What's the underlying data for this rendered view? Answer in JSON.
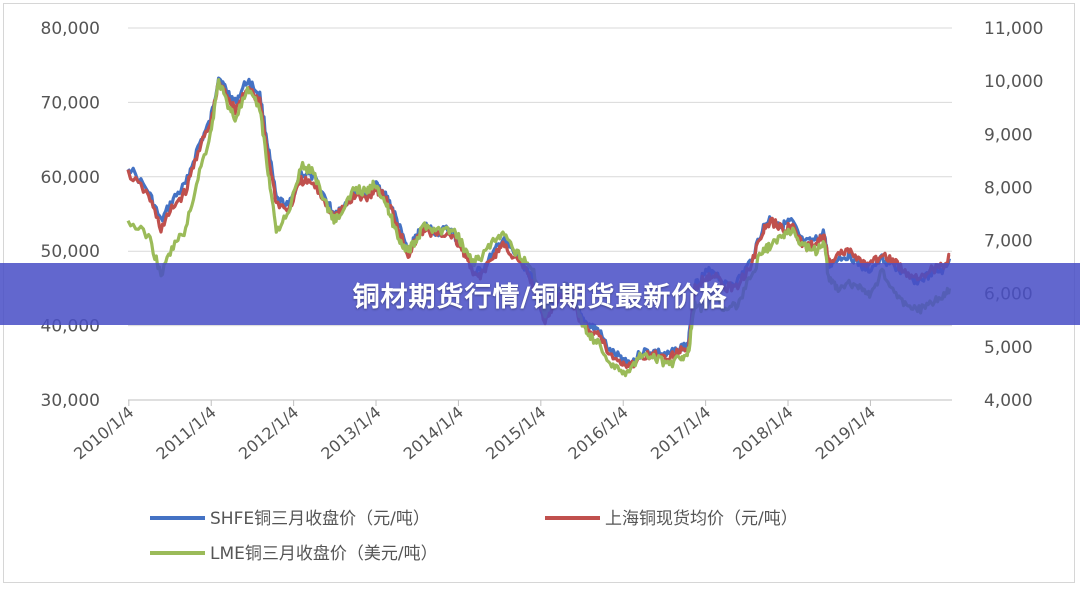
{
  "banner": {
    "title": "铜材期货行情/铜期货最新价格"
  },
  "chart_data": {
    "type": "line",
    "title": "",
    "left_axis": {
      "ylim": [
        30000,
        80000
      ],
      "ticks": [
        "30,000",
        "40,000",
        "50,000",
        "60,000",
        "70,000",
        "80,000"
      ]
    },
    "right_axis": {
      "ylim": [
        4000,
        11000
      ],
      "ticks": [
        "4,000",
        "5,000",
        "6,000",
        "7,000",
        "8,000",
        "9,000",
        "10,000",
        "11,000"
      ]
    },
    "x_ticks": [
      "2010/1/4",
      "2011/1/4",
      "2012/1/4",
      "2013/1/4",
      "2014/1/4",
      "2015/1/4",
      "2016/1/4",
      "2017/1/4",
      "2018/1/4",
      "2019/1/4"
    ],
    "grid": true,
    "legend_position": "bottom",
    "series": [
      {
        "name": "SHFE铜三月收盘价（元/吨）",
        "color": "#4472c4",
        "axis": "left",
        "points": [
          [
            2010.0,
            61500
          ],
          [
            2010.25,
            58000
          ],
          [
            2010.4,
            54000
          ],
          [
            2010.55,
            57000
          ],
          [
            2010.7,
            59000
          ],
          [
            2010.85,
            64000
          ],
          [
            2011.0,
            67500
          ],
          [
            2011.1,
            73500
          ],
          [
            2011.2,
            71500
          ],
          [
            2011.3,
            70000
          ],
          [
            2011.45,
            73000
          ],
          [
            2011.6,
            71000
          ],
          [
            2011.7,
            64000
          ],
          [
            2011.8,
            57000
          ],
          [
            2011.95,
            56000
          ],
          [
            2012.1,
            60500
          ],
          [
            2012.25,
            60000
          ],
          [
            2012.4,
            57000
          ],
          [
            2012.5,
            55000
          ],
          [
            2012.6,
            56000
          ],
          [
            2012.75,
            58000
          ],
          [
            2012.9,
            57500
          ],
          [
            2013.0,
            59000
          ],
          [
            2013.1,
            58000
          ],
          [
            2013.2,
            56000
          ],
          [
            2013.3,
            53000
          ],
          [
            2013.4,
            50000
          ],
          [
            2013.5,
            52000
          ],
          [
            2013.6,
            53500
          ],
          [
            2013.75,
            52500
          ],
          [
            2013.9,
            53000
          ],
          [
            2014.0,
            51500
          ],
          [
            2014.1,
            50000
          ],
          [
            2014.2,
            47000
          ],
          [
            2014.3,
            47500
          ],
          [
            2014.45,
            50000
          ],
          [
            2014.55,
            51500
          ],
          [
            2014.7,
            49500
          ],
          [
            2014.85,
            47500
          ],
          [
            2014.95,
            45000
          ],
          [
            2015.05,
            41000
          ],
          [
            2015.15,
            43000
          ],
          [
            2015.3,
            45000
          ],
          [
            2015.4,
            43500
          ],
          [
            2015.5,
            41000
          ],
          [
            2015.6,
            40000
          ],
          [
            2015.7,
            39500
          ],
          [
            2015.85,
            36500
          ],
          [
            2016.0,
            35500
          ],
          [
            2016.1,
            35000
          ],
          [
            2016.25,
            36500
          ],
          [
            2016.4,
            36500
          ],
          [
            2016.55,
            36000
          ],
          [
            2016.7,
            37000
          ],
          [
            2016.8,
            37500
          ],
          [
            2016.88,
            45500
          ],
          [
            2017.0,
            47000
          ],
          [
            2017.1,
            47500
          ],
          [
            2017.25,
            45500
          ],
          [
            2017.4,
            46000
          ],
          [
            2017.55,
            48500
          ],
          [
            2017.7,
            53000
          ],
          [
            2017.8,
            54500
          ],
          [
            2017.95,
            53500
          ],
          [
            2018.05,
            54000
          ],
          [
            2018.2,
            51000
          ],
          [
            2018.35,
            51500
          ],
          [
            2018.45,
            52500
          ],
          [
            2018.5,
            48000
          ],
          [
            2018.6,
            49000
          ],
          [
            2018.75,
            49500
          ],
          [
            2018.9,
            48000
          ],
          [
            2019.0,
            47500
          ],
          [
            2019.15,
            49000
          ],
          [
            2019.3,
            48000
          ],
          [
            2019.45,
            46500
          ],
          [
            2019.6,
            46000
          ],
          [
            2019.75,
            47000
          ],
          [
            2019.9,
            47500
          ],
          [
            2019.97,
            49000
          ]
        ]
      },
      {
        "name": "上海铜现货均价（元/吨）",
        "color": "#c0504d",
        "axis": "left",
        "points": [
          [
            2010.0,
            60500
          ],
          [
            2010.25,
            57500
          ],
          [
            2010.4,
            53000
          ],
          [
            2010.55,
            56000
          ],
          [
            2010.7,
            58000
          ],
          [
            2010.85,
            63500
          ],
          [
            2011.0,
            67000
          ],
          [
            2011.1,
            72500
          ],
          [
            2011.2,
            71000
          ],
          [
            2011.3,
            69000
          ],
          [
            2011.45,
            72000
          ],
          [
            2011.6,
            70000
          ],
          [
            2011.7,
            63000
          ],
          [
            2011.8,
            56500
          ],
          [
            2011.95,
            55500
          ],
          [
            2012.1,
            59500
          ],
          [
            2012.25,
            59000
          ],
          [
            2012.4,
            56500
          ],
          [
            2012.5,
            54500
          ],
          [
            2012.6,
            55500
          ],
          [
            2012.75,
            57500
          ],
          [
            2012.9,
            57000
          ],
          [
            2013.0,
            58500
          ],
          [
            2013.1,
            57500
          ],
          [
            2013.2,
            55500
          ],
          [
            2013.3,
            52500
          ],
          [
            2013.4,
            49500
          ],
          [
            2013.5,
            51500
          ],
          [
            2013.6,
            53000
          ],
          [
            2013.75,
            52000
          ],
          [
            2013.9,
            52500
          ],
          [
            2014.0,
            51000
          ],
          [
            2014.1,
            49500
          ],
          [
            2014.2,
            46500
          ],
          [
            2014.3,
            47000
          ],
          [
            2014.45,
            49500
          ],
          [
            2014.55,
            51000
          ],
          [
            2014.7,
            49000
          ],
          [
            2014.85,
            47000
          ],
          [
            2014.95,
            44500
          ],
          [
            2015.05,
            40500
          ],
          [
            2015.15,
            42500
          ],
          [
            2015.3,
            44500
          ],
          [
            2015.4,
            43000
          ],
          [
            2015.5,
            40500
          ],
          [
            2015.6,
            39500
          ],
          [
            2015.7,
            39000
          ],
          [
            2015.85,
            36000
          ],
          [
            2016.0,
            35000
          ],
          [
            2016.1,
            34500
          ],
          [
            2016.25,
            36000
          ],
          [
            2016.4,
            36000
          ],
          [
            2016.55,
            35500
          ],
          [
            2016.7,
            36500
          ],
          [
            2016.8,
            37000
          ],
          [
            2016.88,
            45000
          ],
          [
            2017.0,
            46500
          ],
          [
            2017.1,
            47000
          ],
          [
            2017.25,
            45000
          ],
          [
            2017.4,
            45500
          ],
          [
            2017.55,
            48000
          ],
          [
            2017.7,
            52500
          ],
          [
            2017.8,
            54000
          ],
          [
            2017.95,
            53000
          ],
          [
            2018.05,
            53500
          ],
          [
            2018.2,
            50500
          ],
          [
            2018.35,
            51000
          ],
          [
            2018.45,
            52000
          ],
          [
            2018.5,
            48500
          ],
          [
            2018.6,
            49500
          ],
          [
            2018.75,
            50000
          ],
          [
            2018.9,
            48500
          ],
          [
            2019.0,
            48000
          ],
          [
            2019.15,
            49500
          ],
          [
            2019.3,
            48500
          ],
          [
            2019.45,
            47000
          ],
          [
            2019.6,
            46500
          ],
          [
            2019.75,
            47500
          ],
          [
            2019.9,
            48000
          ],
          [
            2019.97,
            49500
          ]
        ]
      },
      {
        "name": "LME铜三月收盘价（美元/吨）",
        "color": "#9bbb59",
        "axis": "right",
        "points": [
          [
            2010.0,
            7350
          ],
          [
            2010.25,
            7100
          ],
          [
            2010.4,
            6350
          ],
          [
            2010.55,
            6900
          ],
          [
            2010.7,
            7200
          ],
          [
            2010.85,
            8200
          ],
          [
            2011.0,
            9000
          ],
          [
            2011.1,
            10000
          ],
          [
            2011.2,
            9600
          ],
          [
            2011.3,
            9300
          ],
          [
            2011.45,
            9800
          ],
          [
            2011.6,
            9500
          ],
          [
            2011.7,
            8300
          ],
          [
            2011.8,
            7200
          ],
          [
            2011.95,
            7500
          ],
          [
            2012.1,
            8400
          ],
          [
            2012.25,
            8300
          ],
          [
            2012.4,
            7700
          ],
          [
            2012.5,
            7400
          ],
          [
            2012.6,
            7500
          ],
          [
            2012.75,
            8000
          ],
          [
            2012.9,
            7900
          ],
          [
            2013.0,
            8100
          ],
          [
            2013.1,
            7800
          ],
          [
            2013.2,
            7400
          ],
          [
            2013.3,
            7000
          ],
          [
            2013.4,
            6800
          ],
          [
            2013.5,
            7000
          ],
          [
            2013.6,
            7300
          ],
          [
            2013.75,
            7200
          ],
          [
            2013.9,
            7200
          ],
          [
            2014.0,
            7100
          ],
          [
            2014.1,
            6800
          ],
          [
            2014.2,
            6600
          ],
          [
            2014.3,
            6700
          ],
          [
            2014.45,
            7000
          ],
          [
            2014.55,
            7100
          ],
          [
            2014.7,
            6800
          ],
          [
            2014.85,
            6600
          ],
          [
            2014.95,
            6300
          ],
          [
            2015.05,
            5600
          ],
          [
            2015.15,
            5900
          ],
          [
            2015.3,
            6200
          ],
          [
            2015.4,
            6000
          ],
          [
            2015.5,
            5500
          ],
          [
            2015.6,
            5200
          ],
          [
            2015.7,
            5100
          ],
          [
            2015.85,
            4700
          ],
          [
            2016.0,
            4500
          ],
          [
            2016.1,
            4600
          ],
          [
            2016.25,
            4900
          ],
          [
            2016.4,
            4800
          ],
          [
            2016.55,
            4650
          ],
          [
            2016.7,
            4800
          ],
          [
            2016.8,
            4900
          ],
          [
            2016.88,
            5800
          ],
          [
            2017.0,
            5700
          ],
          [
            2017.1,
            6000
          ],
          [
            2017.25,
            5700
          ],
          [
            2017.4,
            5800
          ],
          [
            2017.55,
            6300
          ],
          [
            2017.7,
            6800
          ],
          [
            2017.8,
            6900
          ],
          [
            2017.95,
            7100
          ],
          [
            2018.05,
            7200
          ],
          [
            2018.2,
            6900
          ],
          [
            2018.35,
            6800
          ],
          [
            2018.45,
            7000
          ],
          [
            2018.5,
            6300
          ],
          [
            2018.6,
            6100
          ],
          [
            2018.75,
            6200
          ],
          [
            2018.9,
            6100
          ],
          [
            2019.0,
            5950
          ],
          [
            2019.15,
            6400
          ],
          [
            2019.3,
            6000
          ],
          [
            2019.45,
            5800
          ],
          [
            2019.6,
            5700
          ],
          [
            2019.75,
            5800
          ],
          [
            2019.9,
            6000
          ],
          [
            2019.97,
            6100
          ]
        ]
      }
    ]
  }
}
